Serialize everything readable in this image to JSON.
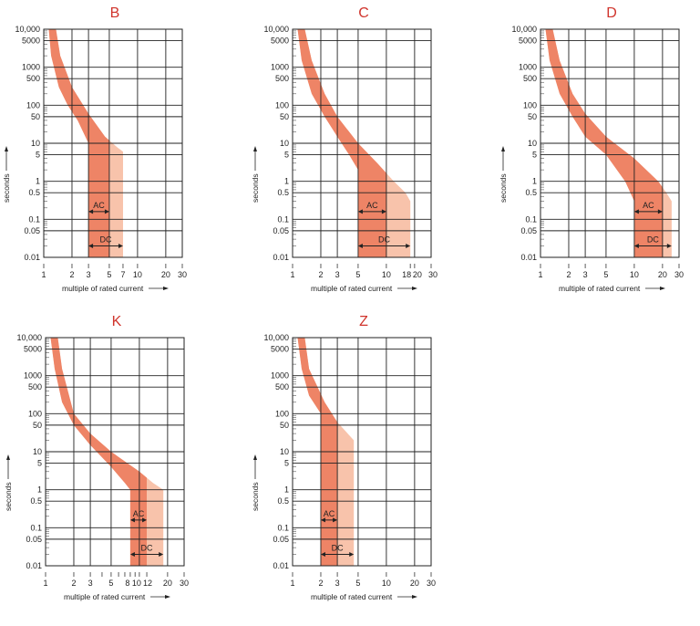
{
  "colors": {
    "band_dark": "#ee8466",
    "band_light": "#f8c3ab",
    "title": "#d0342c",
    "grid": "#222222"
  },
  "chart_data": [
    {
      "type": "area",
      "title": "B",
      "xlabel": "multiple of rated current",
      "ylabel": "seconds",
      "xscale": "log",
      "yscale": "log",
      "xlim": [
        1,
        30
      ],
      "ylim": [
        0.01,
        10000
      ],
      "grid": true,
      "xticks": [
        "1",
        "2",
        "3",
        "5",
        "7",
        "10",
        "20",
        "30"
      ],
      "xtick_values": [
        1,
        2,
        3,
        5,
        7,
        10,
        20,
        30
      ],
      "yticks": [
        "10,000",
        "5000",
        "1000",
        "500",
        "100",
        "50",
        "10",
        "5",
        "1",
        "0.5",
        "0.1",
        "0.05",
        "0.01"
      ],
      "band_left": [
        [
          1.13,
          10000
        ],
        [
          1.2,
          2000
        ],
        [
          1.45,
          300
        ],
        [
          1.8,
          100
        ],
        [
          2.3,
          40
        ],
        [
          3,
          10
        ],
        [
          3,
          0.01
        ]
      ],
      "band_right": [
        [
          1.35,
          10000
        ],
        [
          1.5,
          2000
        ],
        [
          2.0,
          300
        ],
        [
          3,
          60
        ],
        [
          4.5,
          15
        ],
        [
          6,
          8
        ],
        [
          7,
          6
        ],
        [
          7,
          0.01
        ]
      ],
      "ac": {
        "label": "AC",
        "range": [
          3,
          5
        ]
      },
      "dc": {
        "label": "DC",
        "range": [
          3,
          7
        ]
      }
    },
    {
      "type": "area",
      "title": "C",
      "xlabel": "multiple of rated current",
      "ylabel": "seconds",
      "xscale": "log",
      "yscale": "log",
      "xlim": [
        1,
        30
      ],
      "ylim": [
        0.01,
        10000
      ],
      "grid": true,
      "xticks": [
        "1",
        "2",
        "3",
        "5",
        "10",
        "18",
        "20",
        "30"
      ],
      "xtick_values": [
        1,
        2,
        3,
        5,
        10,
        18,
        20,
        30
      ],
      "yticks": [
        "10,000",
        "5000",
        "1000",
        "500",
        "100",
        "50",
        "10",
        "5",
        "1",
        "0.5",
        "0.1",
        "0.05",
        "0.01"
      ],
      "band_left": [
        [
          1.13,
          10000
        ],
        [
          1.25,
          1500
        ],
        [
          1.6,
          200
        ],
        [
          2.2,
          50
        ],
        [
          3,
          15
        ],
        [
          4,
          5
        ],
        [
          5,
          2
        ],
        [
          5,
          0.01
        ]
      ],
      "band_right": [
        [
          1.35,
          10000
        ],
        [
          1.6,
          1500
        ],
        [
          2.2,
          200
        ],
        [
          3,
          50
        ],
        [
          5,
          10
        ],
        [
          8,
          3
        ],
        [
          12,
          1
        ],
        [
          16,
          0.5
        ],
        [
          18,
          0.3
        ],
        [
          18,
          0.01
        ]
      ],
      "ac": {
        "label": "AC",
        "range": [
          5,
          10
        ]
      },
      "dc": {
        "label": "DC",
        "range": [
          5,
          18
        ]
      }
    },
    {
      "type": "area",
      "title": "D",
      "xlabel": "multiple of rated current",
      "ylabel": "seconds",
      "xscale": "log",
      "yscale": "log",
      "xlim": [
        1,
        30
      ],
      "ylim": [
        0.01,
        10000
      ],
      "grid": true,
      "xticks": [
        "1",
        "2",
        "3",
        "5",
        "10",
        "20",
        "30"
      ],
      "xtick_values": [
        1,
        2,
        3,
        5,
        10,
        20,
        30
      ],
      "yticks": [
        "10,000",
        "5000",
        "1000",
        "500",
        "100",
        "50",
        "10",
        "5",
        "1",
        "0.5",
        "0.1",
        "0.05",
        "0.01"
      ],
      "band_left": [
        [
          1.13,
          10000
        ],
        [
          1.25,
          1500
        ],
        [
          1.6,
          200
        ],
        [
          2.2,
          50
        ],
        [
          3,
          15
        ],
        [
          5,
          5
        ],
        [
          8,
          1
        ],
        [
          10,
          0.3
        ],
        [
          10,
          0.01
        ]
      ],
      "band_right": [
        [
          1.35,
          10000
        ],
        [
          1.6,
          1500
        ],
        [
          2.2,
          200
        ],
        [
          3,
          60
        ],
        [
          5,
          15
        ],
        [
          10,
          4
        ],
        [
          18,
          1
        ],
        [
          22,
          0.5
        ],
        [
          25,
          0.3
        ],
        [
          25,
          0.01
        ]
      ],
      "ac": {
        "label": "AC",
        "range": [
          10,
          20
        ]
      },
      "dc": {
        "label": "DC",
        "range": [
          10,
          25
        ]
      }
    },
    {
      "type": "area",
      "title": "K",
      "xlabel": "multiple of rated current",
      "ylabel": "seconds",
      "xscale": "log",
      "yscale": "log",
      "xlim": [
        1,
        30
      ],
      "ylim": [
        0.01,
        10000
      ],
      "grid": true,
      "xticks": [
        "1",
        "2",
        "3",
        "5",
        "8",
        "10",
        "12",
        "20",
        "30"
      ],
      "xtick_values": [
        1,
        2,
        3,
        5,
        8,
        10,
        12,
        20,
        30
      ],
      "yticks": [
        "10,000",
        "5000",
        "1000",
        "500",
        "100",
        "50",
        "10",
        "5",
        "1",
        "0.5",
        "0.1",
        "0.05",
        "0.01"
      ],
      "band_left": [
        [
          1.13,
          10000
        ],
        [
          1.25,
          1500
        ],
        [
          1.5,
          200
        ],
        [
          2,
          50
        ],
        [
          3,
          15
        ],
        [
          5,
          4
        ],
        [
          7,
          1.5
        ],
        [
          8,
          1
        ],
        [
          8,
          0.01
        ]
      ],
      "band_right": [
        [
          1.35,
          10000
        ],
        [
          1.5,
          1500
        ],
        [
          2,
          100
        ],
        [
          3,
          30
        ],
        [
          5,
          10
        ],
        [
          10,
          3
        ],
        [
          14,
          1.5
        ],
        [
          18,
          1
        ],
        [
          18,
          0.01
        ]
      ],
      "ac": {
        "label": "AC",
        "range": [
          8,
          12
        ]
      },
      "dc": {
        "label": "DC",
        "range": [
          8,
          18
        ]
      }
    },
    {
      "type": "area",
      "title": "Z",
      "xlabel": "multiple of rated current",
      "ylabel": "seconds",
      "xscale": "log",
      "yscale": "log",
      "xlim": [
        1,
        30
      ],
      "ylim": [
        0.01,
        10000
      ],
      "grid": true,
      "xticks": [
        "1",
        "2",
        "3",
        "5",
        "10",
        "20",
        "30"
      ],
      "xtick_values": [
        1,
        2,
        3,
        5,
        10,
        20,
        30
      ],
      "yticks": [
        "10,000",
        "5000",
        "1000",
        "500",
        "100",
        "50",
        "10",
        "5",
        "1",
        "0.5",
        "0.1",
        "0.05",
        "0.01"
      ],
      "band_left": [
        [
          1.13,
          10000
        ],
        [
          1.25,
          1500
        ],
        [
          1.5,
          300
        ],
        [
          2,
          100
        ],
        [
          2,
          0.01
        ]
      ],
      "band_right": [
        [
          1.35,
          10000
        ],
        [
          1.5,
          1500
        ],
        [
          2.2,
          200
        ],
        [
          3,
          60
        ],
        [
          4.5,
          20
        ],
        [
          4.5,
          0.01
        ]
      ],
      "ac": {
        "label": "AC",
        "range": [
          2,
          3
        ]
      },
      "dc": {
        "label": "DC",
        "range": [
          2,
          4.5
        ]
      }
    }
  ]
}
